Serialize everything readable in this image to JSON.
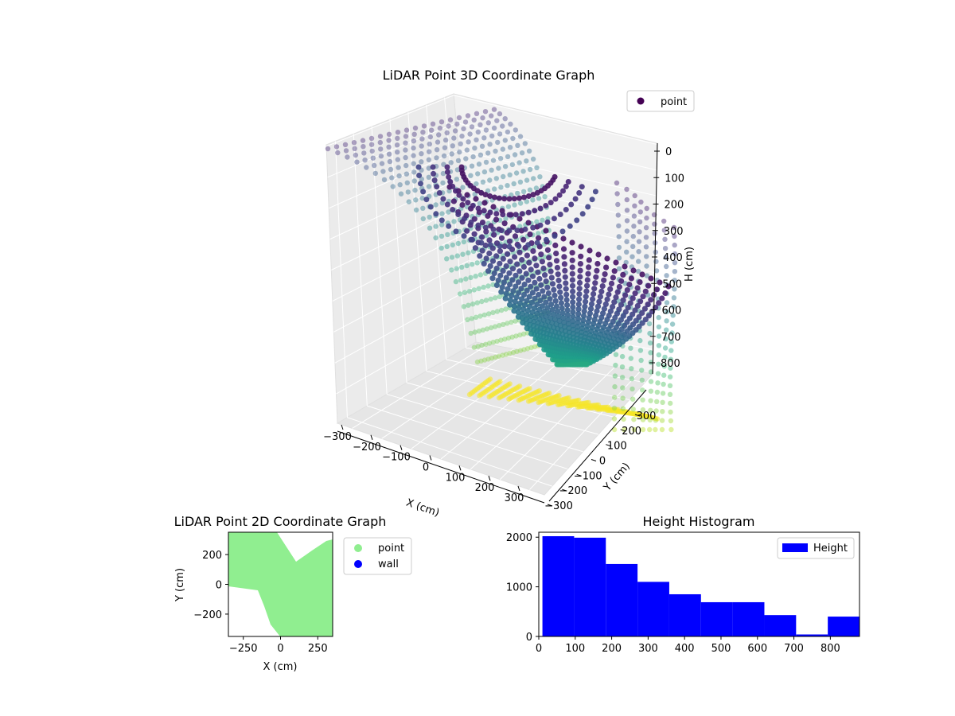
{
  "chart_data": [
    {
      "type": "scatter3d",
      "title": "LiDAR Point 3D Coordinate Graph",
      "xlabel": "X (cm)",
      "ylabel": "Y (cm)",
      "zlabel": "H (cm)",
      "xlim": [
        -350,
        350
      ],
      "ylim": [
        -350,
        350
      ],
      "zlim": [
        0,
        880
      ],
      "zaxis_inverted": true,
      "xticks": [
        "−300",
        "−200",
        "−100",
        "0",
        "100",
        "200",
        "300"
      ],
      "yticks": [
        "−300",
        "−200",
        "−100",
        "0",
        "100",
        "200",
        "300"
      ],
      "zticks": [
        "0",
        "100",
        "200",
        "300",
        "400",
        "500",
        "600",
        "700",
        "800"
      ],
      "colormap": "viridis",
      "legend": {
        "entries": [
          "point"
        ],
        "placement": "upper-right"
      },
      "grid": true
    },
    {
      "type": "scatter",
      "title": "LiDAR Point 2D Coordinate Graph",
      "xlabel": "X (cm)",
      "ylabel": "Y (cm)",
      "xlim": [
        -350,
        350
      ],
      "ylim": [
        -350,
        350
      ],
      "xticks": [
        -250,
        0,
        250
      ],
      "yticks": [
        -200,
        0,
        200
      ],
      "series": [
        {
          "name": "point",
          "color": "#90ee90"
        },
        {
          "name": "wall",
          "color": "#0000ff"
        }
      ],
      "legend": {
        "placement": "outside-right"
      }
    },
    {
      "type": "bar",
      "title": "Height Histogram",
      "xlabel": "",
      "ylabel": "",
      "xlim": [
        0,
        880
      ],
      "ylim": [
        0,
        2100
      ],
      "xticks": [
        0,
        100,
        200,
        300,
        400,
        500,
        600,
        700,
        800
      ],
      "yticks": [
        0,
        1000,
        2000
      ],
      "bin_edges": [
        10,
        97,
        184,
        271,
        358,
        445,
        532,
        619,
        706,
        793,
        880
      ],
      "counts": [
        2020,
        1990,
        1460,
        1100,
        850,
        690,
        690,
        430,
        40,
        400
      ],
      "series": [
        {
          "name": "Height",
          "color": "#0000ff"
        }
      ],
      "legend": {
        "placement": "upper-right"
      }
    }
  ]
}
